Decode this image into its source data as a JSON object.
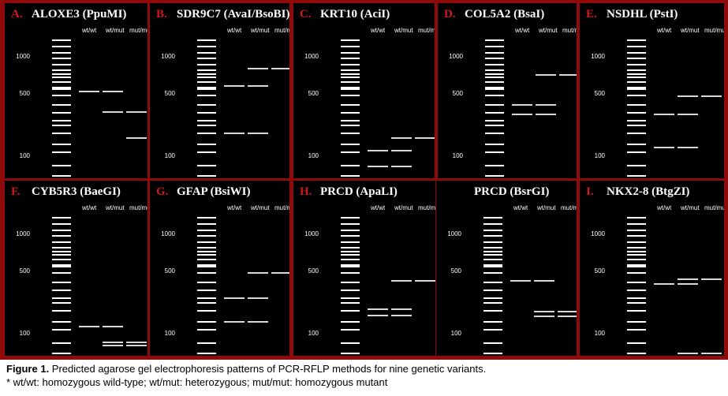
{
  "genotype_labels": [
    "wt/wt",
    "wt/mut",
    "mut/mut"
  ],
  "panels": [
    {
      "letter": "A.",
      "title": "ALOXE3 (PpuMI)"
    },
    {
      "letter": "B.",
      "title": "SDR9C7 (AvaI/BsoBI)"
    },
    {
      "letter": "C.",
      "title": "KRT10 (AciI)"
    },
    {
      "letter": "D.",
      "title": "COL5A2 (BsaI)"
    },
    {
      "letter": "E.",
      "title": "NSDHL (PstI)"
    },
    {
      "letter": "F.",
      "title": "CYB5R3 (BaeGI)"
    },
    {
      "letter": "G.",
      "title": "GFAP (BsiWI)"
    },
    {
      "letter": "H.",
      "title": "PRCD (ApaLI)"
    },
    {
      "letter": "",
      "title": "PRCD (BsrGI)"
    },
    {
      "letter": "I.",
      "title": "NKX2-8 (BtgZI)"
    }
  ],
  "ladder_labels": [
    "1000",
    "500",
    "100"
  ],
  "caption": {
    "figure_label": "Figure 1.",
    "text": " Predicted agarose gel electrophoresis patterns of PCR-RFLP methods for nine genetic variants.",
    "footnote": "* wt/wt: homozygous wild-type; wt/mut: heterozygous; mut/mut: homozygous mutant"
  },
  "colors": {
    "border": "#8f0b0b",
    "gel": "#000000",
    "letter": "#d01a1a",
    "band": "#ffffff"
  }
}
